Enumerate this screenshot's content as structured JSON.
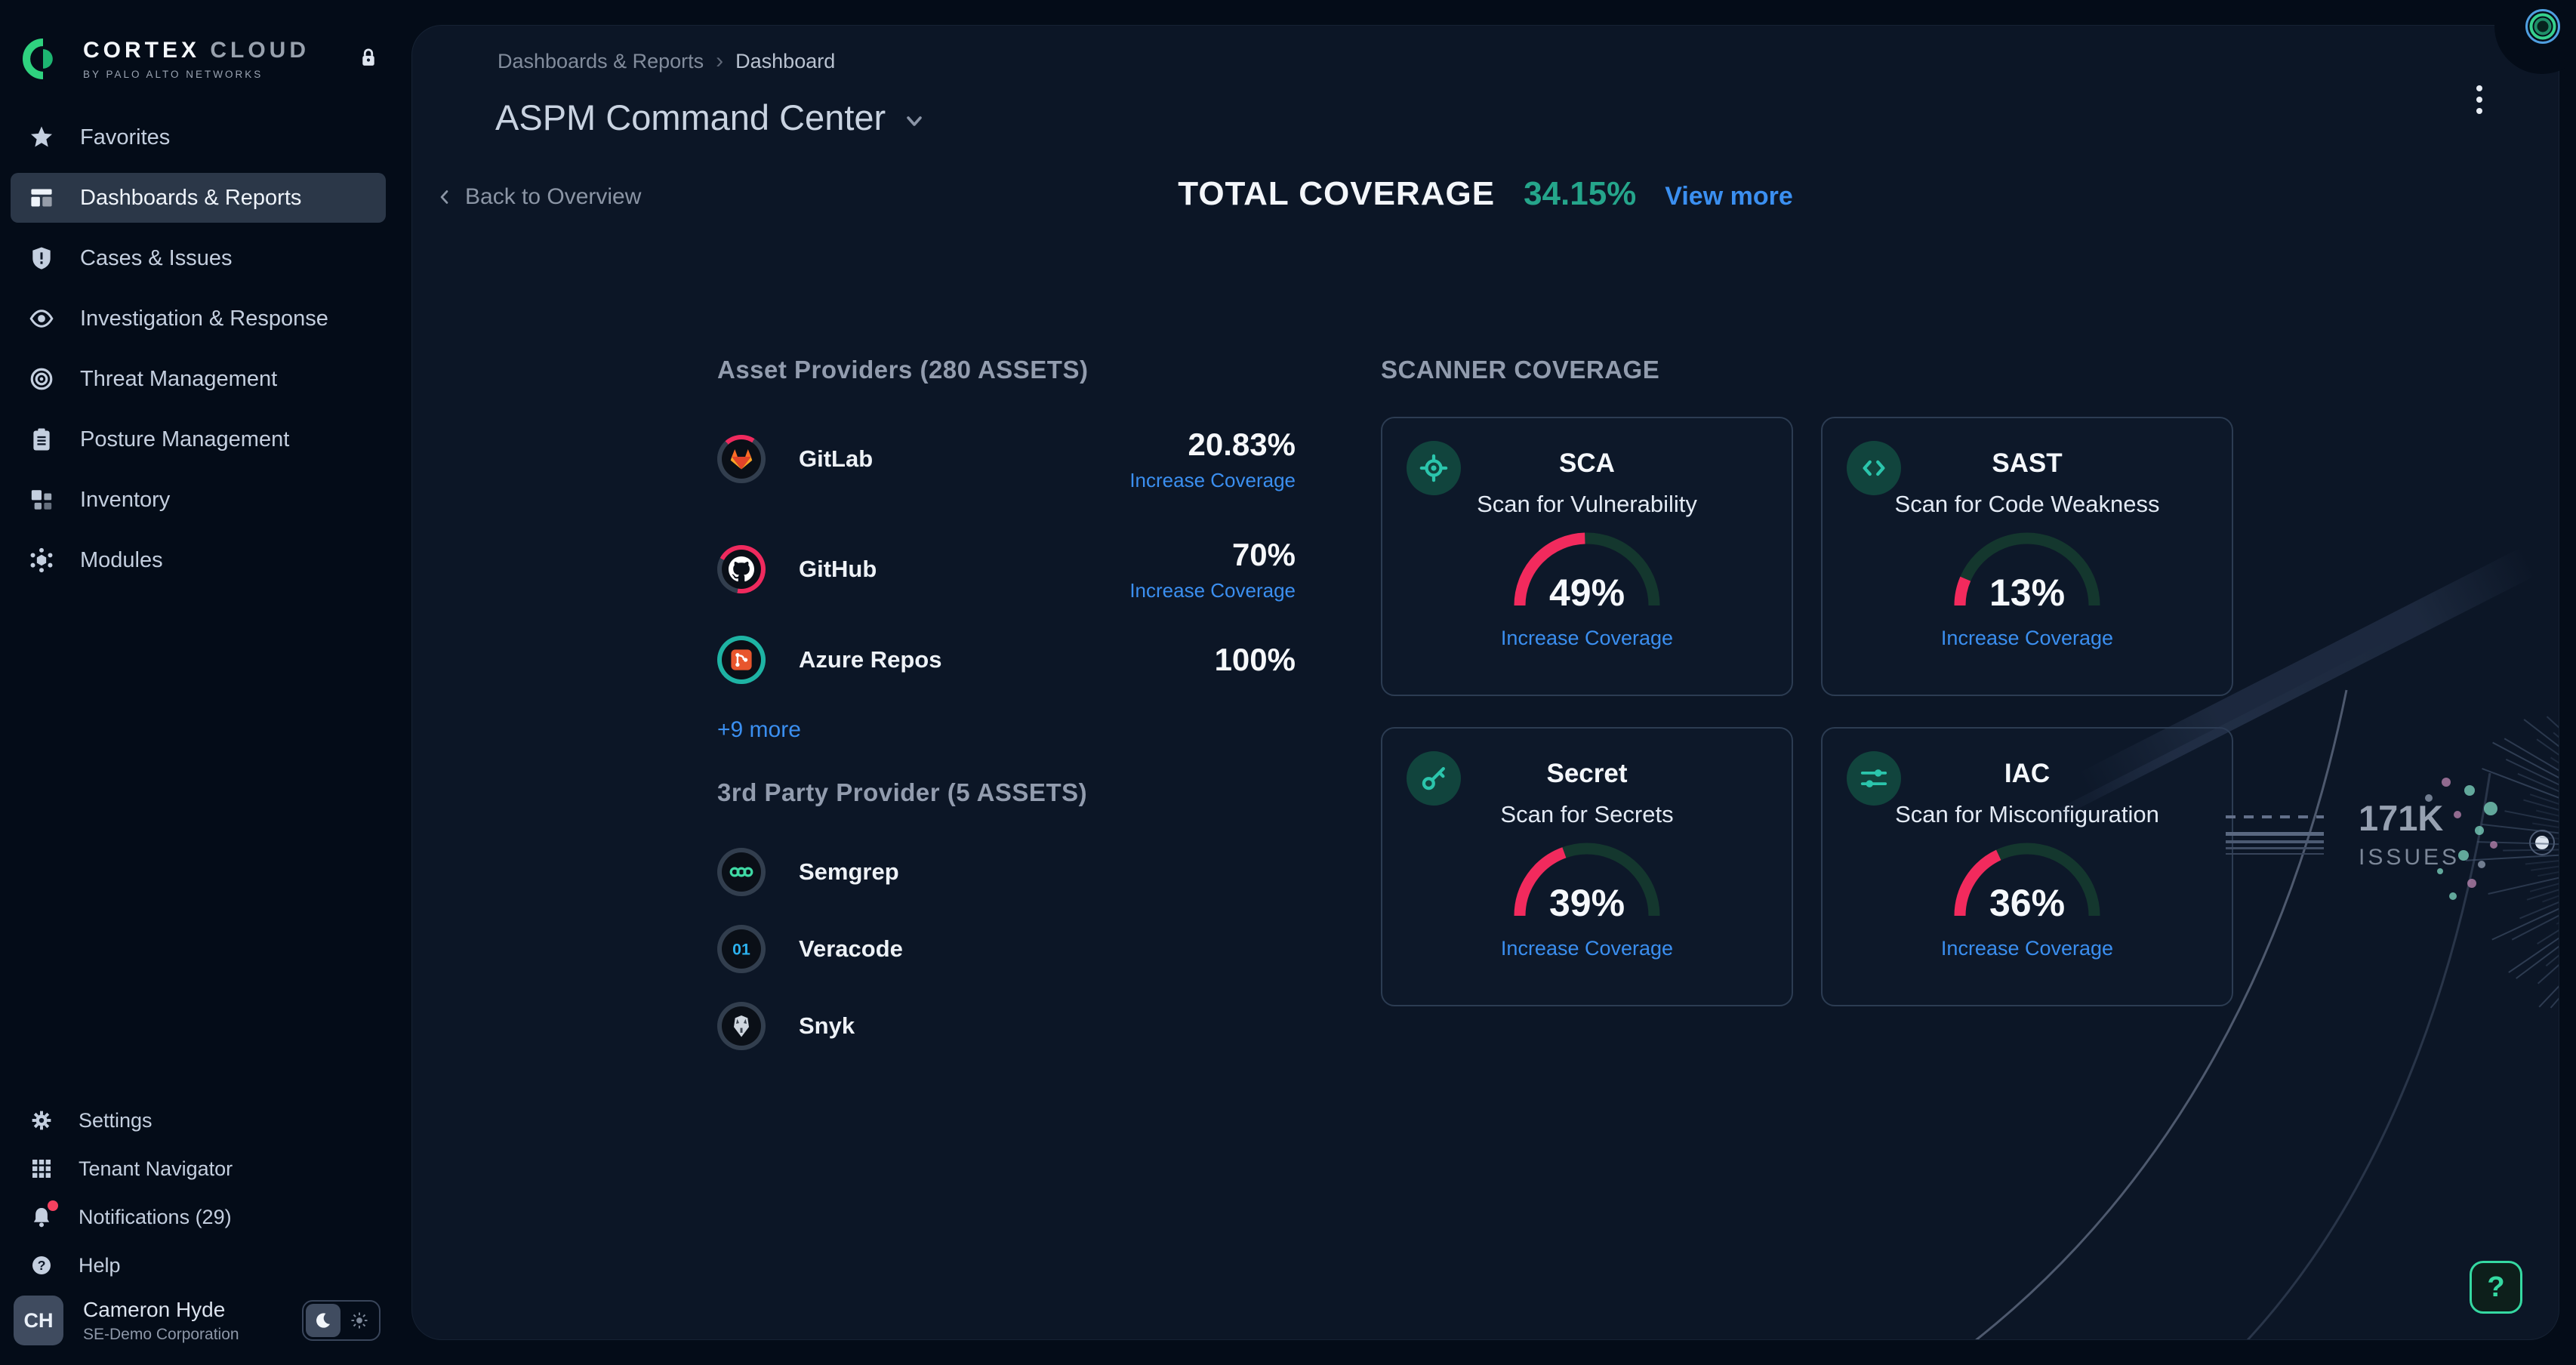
{
  "brand": {
    "title_primary": "CORTEX",
    "title_secondary": "CLOUD",
    "subtitle": "BY PALO ALTO NETWORKS"
  },
  "sidebar": {
    "items": [
      {
        "label": "Favorites",
        "icon": "star"
      },
      {
        "label": "Dashboards & Reports",
        "icon": "dashboards",
        "active": true
      },
      {
        "label": "Cases & Issues",
        "icon": "shield"
      },
      {
        "label": "Investigation & Response",
        "icon": "eye"
      },
      {
        "label": "Threat Management",
        "icon": "target"
      },
      {
        "label": "Posture Management",
        "icon": "clipboard"
      },
      {
        "label": "Inventory",
        "icon": "inventory"
      },
      {
        "label": "Modules",
        "icon": "modules"
      }
    ],
    "bottom_items": [
      {
        "label": "Settings",
        "icon": "gear"
      },
      {
        "label": "Tenant Navigator",
        "icon": "grid"
      },
      {
        "label": "Notifications (29)",
        "icon": "bell",
        "badge_dot": true
      },
      {
        "label": "Help",
        "icon": "help"
      }
    ],
    "user": {
      "initials": "CH",
      "name": "Cameron Hyde",
      "org": "SE-Demo Corporation"
    }
  },
  "header": {
    "breadcrumb": {
      "section": "Dashboards & Reports",
      "page": "Dashboard"
    },
    "title": "ASPM Command Center"
  },
  "toolbar": {
    "back_label": "Back to Overview",
    "total_label": "TOTAL COVERAGE",
    "total_value": "34.15%",
    "view_more": "View more"
  },
  "asset_providers": {
    "heading": "Asset Providers (280 ASSETS)",
    "rows": [
      {
        "name": "GitLab",
        "percent": "20.83%",
        "ring_percent": 20.83,
        "ring_color": "#ef2a5e",
        "link": "Increase Coverage",
        "logo": "gitlab"
      },
      {
        "name": "GitHub",
        "percent": "70%",
        "ring_percent": 70,
        "ring_color": "#ef2a5e",
        "link": "Increase Coverage",
        "logo": "github"
      },
      {
        "name": "Azure Repos",
        "percent": "100%",
        "ring_percent": 100,
        "ring_color": "#1eb3a4",
        "logo": "azure"
      }
    ],
    "more_label": "+9 more"
  },
  "third_party": {
    "heading": "3rd Party Provider (5 ASSETS)",
    "rows": [
      {
        "name": "Semgrep",
        "logo": "semgrep"
      },
      {
        "name": "Veracode",
        "logo": "veracode"
      },
      {
        "name": "Snyk",
        "logo": "snyk"
      }
    ]
  },
  "scanner": {
    "heading": "SCANNER COVERAGE",
    "link_label": "Increase Coverage",
    "cards": [
      {
        "title": "SCA",
        "subtitle": "Scan for Vulnerability",
        "percent": 49,
        "icon": "scan"
      },
      {
        "title": "SAST",
        "subtitle": "Scan for Code Weakness",
        "percent": 13,
        "icon": "code"
      },
      {
        "title": "Secret",
        "subtitle": "Scan for Secrets",
        "percent": 39,
        "icon": "key"
      },
      {
        "title": "IAC",
        "subtitle": "Scan for Misconfiguration",
        "percent": 36,
        "icon": "sliders"
      }
    ]
  },
  "issues_widget": {
    "value": "171K",
    "label": "ISSUES"
  },
  "help_button_label": "?",
  "colors": {
    "accent_teal": "#25a58b",
    "link_blue": "#3b8ff0",
    "gauge_pink": "#f22a5d",
    "gauge_track": "#14372e",
    "ring_gray": "#323e4e"
  }
}
